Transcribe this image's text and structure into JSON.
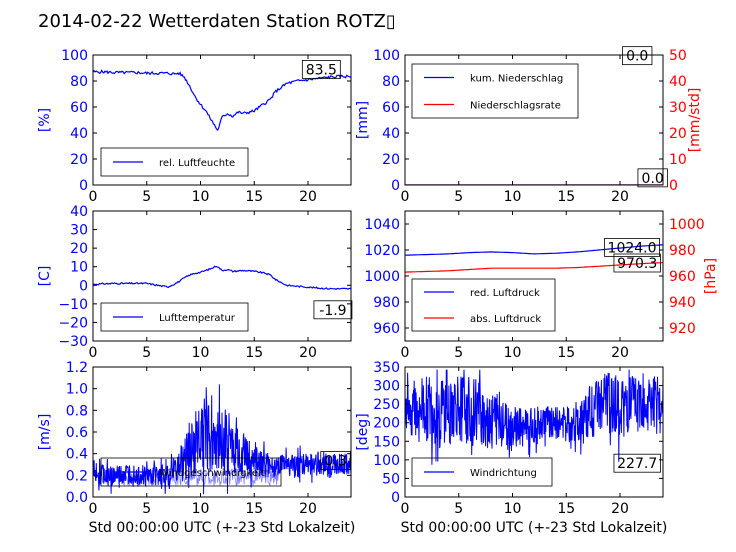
{
  "figure_title": "2014-02-22 Wetterdaten Station ROTZ▯",
  "colors": {
    "left_axis": "#0000ff",
    "right_axis": "#ff0000",
    "series_blue": "#0000ff",
    "series_red": "#ff0000",
    "series_light": "#8080ff"
  },
  "chart_data": [
    {
      "id": "humidity",
      "type": "line",
      "ylabel": "[%]",
      "xlabel": "",
      "xlim": [
        0,
        24
      ],
      "ylim": [
        0,
        100
      ],
      "xticks": [
        "0",
        "5",
        "10",
        "15",
        "20"
      ],
      "yticks": [
        "0",
        "20",
        "40",
        "60",
        "80",
        "100"
      ],
      "legend_location": "lower-left",
      "annotation": "83.5",
      "series": [
        {
          "name": "rel. Luftfeuchte",
          "color": "#0000ff",
          "x": [
            0,
            1,
            2,
            3,
            4,
            5,
            6,
            7,
            7.5,
            8,
            8.5,
            9,
            9.5,
            10,
            10.5,
            11,
            11.3,
            11.6,
            12,
            12.5,
            13,
            13.5,
            14,
            14.5,
            15,
            15.5,
            16,
            16.5,
            17,
            18,
            19,
            20,
            21,
            22,
            23,
            24
          ],
          "y": [
            87,
            87,
            86.5,
            86.5,
            86.5,
            86,
            86,
            86,
            85.5,
            86,
            83,
            76,
            68,
            62,
            57,
            50,
            46,
            42,
            52,
            55,
            53,
            56,
            55,
            56,
            57,
            60,
            63,
            66,
            72,
            78,
            80,
            81,
            82,
            83,
            83.5,
            83.5
          ]
        }
      ]
    },
    {
      "id": "precipitation",
      "type": "line",
      "ylabel": "[mm]",
      "ylabel_right": "[mm/std]",
      "xlim": [
        0,
        24
      ],
      "ylim": [
        0,
        100
      ],
      "ylim_right": [
        0,
        50
      ],
      "xticks": [
        "0",
        "5",
        "10",
        "15",
        "20"
      ],
      "yticks": [
        "0",
        "20",
        "40",
        "60",
        "80",
        "100"
      ],
      "yticks_right": [
        "0",
        "10",
        "20",
        "30",
        "40",
        "50"
      ],
      "legend_location": "upper-left",
      "annotation": "0.0",
      "annotation2": "0.0",
      "series": [
        {
          "name": "kum. Niederschlag",
          "color": "#0000ff",
          "axis": "left",
          "x": [
            0,
            24
          ],
          "y": [
            0,
            0
          ]
        },
        {
          "name": "Niederschlagsrate",
          "color": "#ff0000",
          "axis": "right",
          "x": [
            0,
            24
          ],
          "y": [
            0,
            0
          ]
        }
      ]
    },
    {
      "id": "temperature",
      "type": "line",
      "ylabel": "[C]",
      "xlim": [
        0,
        24
      ],
      "ylim": [
        -30,
        40
      ],
      "xticks": [
        "0",
        "5",
        "10",
        "15",
        "20"
      ],
      "yticks": [
        "−30",
        "−20",
        "−10",
        "0",
        "10",
        "20",
        "30",
        "40"
      ],
      "legend_location": "lower-left",
      "annotation": "-1.9",
      "series": [
        {
          "name": "Lufttemperatur",
          "color": "#0000ff",
          "x": [
            0,
            1,
            2,
            3,
            4,
            5,
            5.5,
            6,
            6.5,
            7,
            7.5,
            8,
            8.5,
            9,
            9.5,
            10,
            10.5,
            11,
            11.5,
            12,
            12.5,
            13,
            14,
            15,
            16,
            16.5,
            17,
            17.5,
            18,
            19,
            20,
            21,
            22,
            23,
            24
          ],
          "y": [
            0.5,
            0.8,
            1,
            1,
            1,
            1,
            0.5,
            0,
            -0.5,
            -0.8,
            0.5,
            2,
            4,
            5.5,
            6.5,
            7,
            8,
            9,
            10.5,
            8,
            8.5,
            7.5,
            8,
            7.5,
            6.5,
            5.5,
            3,
            1.5,
            0,
            -0.5,
            -1,
            -1.5,
            -1.8,
            -1.9,
            -1.9
          ]
        }
      ]
    },
    {
      "id": "pressure",
      "type": "line",
      "ylabel": "",
      "ylabel_right": "[hPa]",
      "xlim": [
        0,
        24
      ],
      "ylim": [
        950,
        1050
      ],
      "ylim_right": [
        910,
        1010
      ],
      "xticks": [
        "0",
        "5",
        "10",
        "15",
        "20"
      ],
      "yticks": [
        "960",
        "980",
        "1000",
        "1020",
        "1040"
      ],
      "yticks_right": [
        "920",
        "940",
        "960",
        "980",
        "1000"
      ],
      "legend_location": "lower-left",
      "annotation": "1024.0",
      "annotation2": "970.3",
      "series": [
        {
          "name": "red. Luftdruck",
          "color": "#0000ff",
          "axis": "left",
          "x": [
            0,
            2,
            4,
            6,
            8,
            10,
            12,
            14,
            16,
            18,
            20,
            22,
            24
          ],
          "y": [
            1016,
            1016.5,
            1017,
            1018,
            1018.5,
            1018,
            1017,
            1017.5,
            1018.5,
            1020,
            1021.5,
            1023,
            1024
          ]
        },
        {
          "name": "abs. Luftdruck",
          "color": "#ff0000",
          "axis": "right",
          "x": [
            0,
            2,
            4,
            6,
            8,
            10,
            12,
            14,
            16,
            18,
            20,
            22,
            24
          ],
          "y": [
            963,
            963.5,
            964,
            965,
            966,
            966,
            966,
            966,
            966.5,
            967.5,
            968.5,
            969.5,
            970.3
          ]
        }
      ]
    },
    {
      "id": "wind_speed",
      "type": "line",
      "ylabel": "[m/s]",
      "xlabel": "Std 00:00:00 UTC (+-23 Std Lokalzeit)",
      "xlim": [
        0,
        24
      ],
      "ylim": [
        0,
        1.2
      ],
      "xticks": [
        "0",
        "5",
        "10",
        "15",
        "20"
      ],
      "yticks": [
        "0.0",
        "0.2",
        "0.4",
        "0.6",
        "0.8",
        "1.0",
        "1.2"
      ],
      "legend_location": "lower-left",
      "annotation": "0.3",
      "series": [
        {
          "name": "Windgeschwindigkeit",
          "color": "#0000ff",
          "style": "noisy",
          "x": [
            0,
            1,
            2,
            3,
            4,
            5,
            6,
            7,
            8,
            8.5,
            9,
            9.5,
            10,
            10.5,
            11,
            11.5,
            12,
            12.5,
            13,
            13.5,
            14,
            15,
            16,
            17,
            18,
            19,
            20,
            21,
            22,
            23,
            24
          ],
          "y": [
            0.25,
            0.2,
            0.18,
            0.2,
            0.22,
            0.18,
            0.2,
            0.2,
            0.28,
            0.35,
            0.42,
            0.5,
            0.55,
            0.6,
            0.6,
            0.55,
            0.5,
            0.5,
            0.48,
            0.45,
            0.38,
            0.35,
            0.3,
            0.28,
            0.3,
            0.28,
            0.3,
            0.32,
            0.3,
            0.3,
            0.3
          ],
          "amplitude": [
            0.1,
            0.1,
            0.1,
            0.1,
            0.1,
            0.1,
            0.1,
            0.1,
            0.15,
            0.2,
            0.3,
            0.3,
            0.35,
            0.35,
            0.35,
            0.3,
            0.3,
            0.3,
            0.25,
            0.25,
            0.2,
            0.15,
            0.12,
            0.1,
            0.1,
            0.1,
            0.12,
            0.12,
            0.1,
            0.1,
            0.1
          ]
        }
      ]
    },
    {
      "id": "wind_direction",
      "type": "line",
      "ylabel": "[deg]",
      "xlabel": "Std 00:00:00 UTC (+-23 Std Lokalzeit)",
      "xlim": [
        0,
        24
      ],
      "ylim": [
        0,
        360
      ],
      "xticks": [
        "0",
        "5",
        "10",
        "15",
        "20"
      ],
      "yticks": [
        "0",
        "50",
        "100",
        "150",
        "200",
        "250",
        "300",
        "350"
      ],
      "legend_location": "lower-left",
      "annotation": "227.7",
      "series": [
        {
          "name": "Windrichtung",
          "color": "#0000ff",
          "style": "noisy",
          "x": [
            0,
            1,
            2,
            3,
            4,
            5,
            6,
            7,
            8,
            9,
            10,
            11,
            12,
            13,
            14,
            15,
            16,
            17,
            18,
            19,
            20,
            21,
            22,
            23,
            24
          ],
          "y": [
            260,
            250,
            240,
            230,
            240,
            250,
            240,
            230,
            220,
            200,
            190,
            195,
            200,
            210,
            205,
            200,
            210,
            230,
            250,
            260,
            255,
            250,
            260,
            255,
            250
          ],
          "amplitude": [
            90,
            95,
            95,
            100,
            100,
            95,
            95,
            100,
            90,
            70,
            60,
            60,
            50,
            45,
            45,
            50,
            55,
            70,
            80,
            90,
            90,
            90,
            85,
            85,
            80
          ]
        }
      ]
    }
  ]
}
